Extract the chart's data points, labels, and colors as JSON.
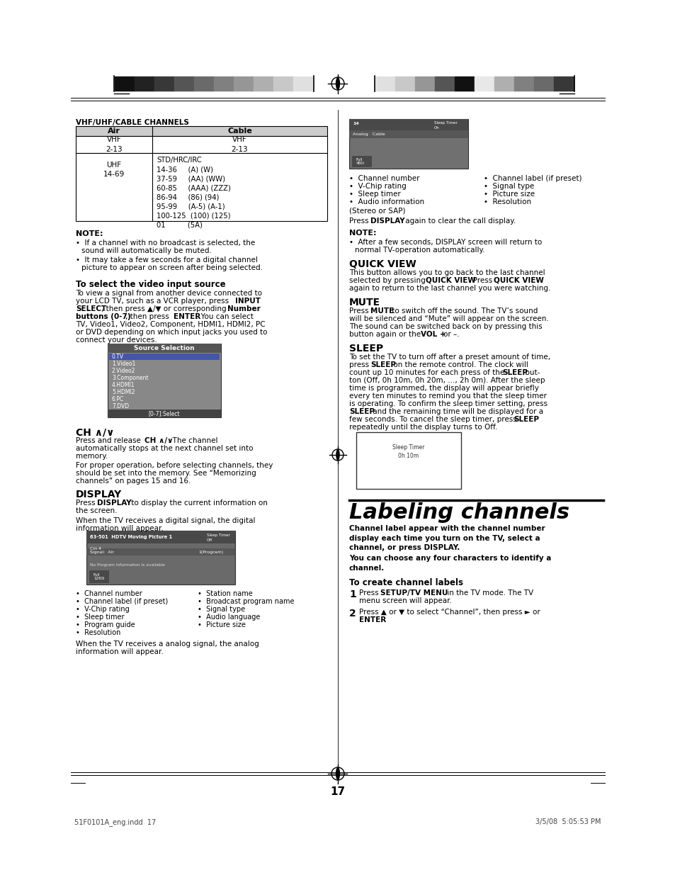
{
  "page_number": "17",
  "footer_left": "51F0101A_eng.indd  17",
  "footer_right": "3/5/08  5:05:53 PM",
  "bg_color": "#ffffff"
}
